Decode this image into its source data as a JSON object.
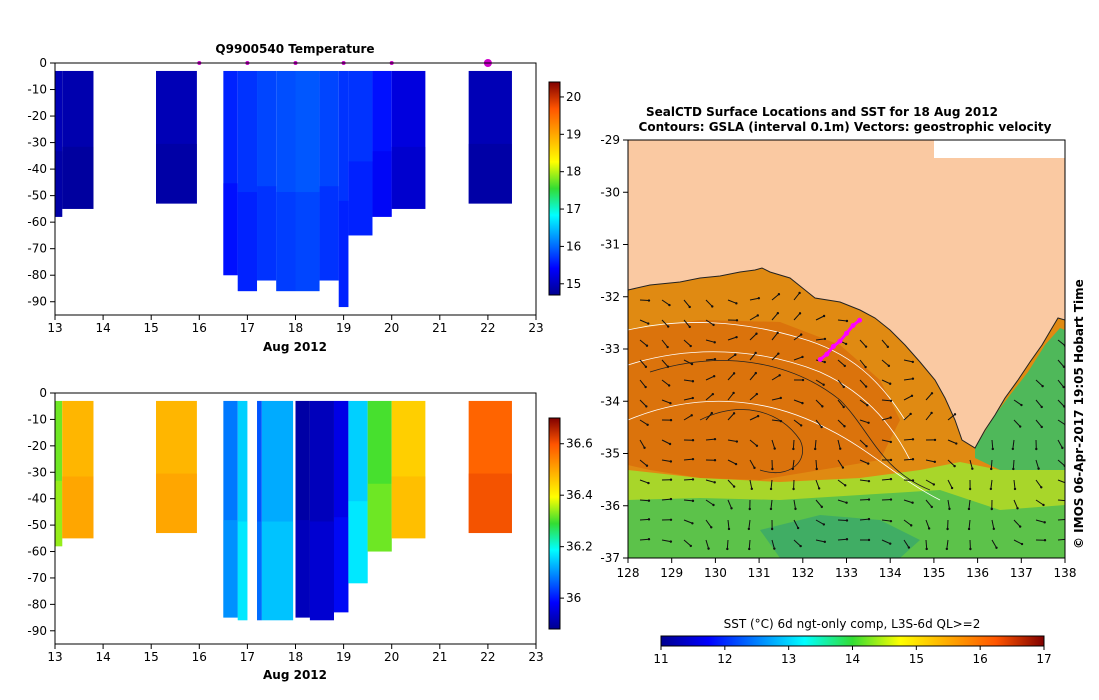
{
  "chart_data": [
    {
      "id": "temperature",
      "type": "heatmap",
      "title": "Q9900540  Temperature",
      "xlabel": "Aug 2012",
      "ylabel": "",
      "xlim": [
        13,
        23
      ],
      "ylim": [
        -95,
        0
      ],
      "x_ticks": [
        13,
        14,
        15,
        16,
        17,
        18,
        19,
        20,
        21,
        22,
        23
      ],
      "y_ticks": [
        0,
        -10,
        -20,
        -30,
        -40,
        -50,
        -60,
        -70,
        -80,
        -90
      ],
      "colorbar": {
        "min": 14.7,
        "max": 20.4,
        "ticks": [
          15,
          16,
          17,
          18,
          19,
          20
        ],
        "colormap": "jet"
      },
      "profile_markers": [
        16,
        17,
        18,
        19,
        20,
        22
      ],
      "highlight_marker": 22,
      "profiles": [
        {
          "x0": 13.0,
          "x1": 13.15,
          "top": -3,
          "bottom": -58,
          "value": 14.95
        },
        {
          "x0": 13.15,
          "x1": 13.8,
          "top": -3,
          "bottom": -55,
          "value": 14.9
        },
        {
          "x0": 15.1,
          "x1": 15.95,
          "top": -3,
          "bottom": -53,
          "value": 14.95
        },
        {
          "x0": 16.5,
          "x1": 16.8,
          "top": -3,
          "bottom": -80,
          "value": 15.6
        },
        {
          "x0": 16.8,
          "x1": 17.2,
          "top": -3,
          "bottom": -86,
          "value": 15.7
        },
        {
          "x0": 17.2,
          "x1": 17.6,
          "top": -3,
          "bottom": -82,
          "value": 15.8
        },
        {
          "x0": 17.6,
          "x1": 18.0,
          "top": -3,
          "bottom": -86,
          "value": 15.85
        },
        {
          "x0": 18.0,
          "x1": 18.5,
          "top": -3,
          "bottom": -86,
          "value": 15.9
        },
        {
          "x0": 18.5,
          "x1": 18.9,
          "top": -3,
          "bottom": -82,
          "value": 15.8
        },
        {
          "x0": 18.9,
          "x1": 19.1,
          "top": -3,
          "bottom": -92,
          "value": 15.7
        },
        {
          "x0": 19.1,
          "x1": 19.6,
          "top": -3,
          "bottom": -65,
          "value": 15.7
        },
        {
          "x0": 19.6,
          "x1": 20.0,
          "top": -3,
          "bottom": -58,
          "value": 15.5
        },
        {
          "x0": 20.0,
          "x1": 20.7,
          "top": -3,
          "bottom": -55,
          "value": 15.2
        },
        {
          "x0": 21.6,
          "x1": 22.5,
          "top": -3,
          "bottom": -53,
          "value": 14.95
        }
      ]
    },
    {
      "id": "salinity",
      "type": "heatmap",
      "title": "",
      "xlabel": "Aug 2012",
      "ylabel": "",
      "xlim": [
        13,
        23
      ],
      "ylim": [
        -95,
        0
      ],
      "x_ticks": [
        13,
        14,
        15,
        16,
        17,
        18,
        19,
        20,
        21,
        22,
        23
      ],
      "y_ticks": [
        0,
        -10,
        -20,
        -30,
        -40,
        -50,
        -60,
        -70,
        -80,
        -90
      ],
      "colorbar": {
        "min": 35.88,
        "max": 36.7,
        "ticks": [
          36.0,
          36.2,
          36.4,
          36.6
        ],
        "tick_labels": [
          "36",
          "36.2",
          "36.4",
          "36.6"
        ],
        "colormap": "jet"
      },
      "profiles": [
        {
          "x0": 13.0,
          "x1": 13.15,
          "top": -3,
          "bottom": -58,
          "value": 36.32
        },
        {
          "x0": 13.15,
          "x1": 13.8,
          "top": -3,
          "bottom": -55,
          "value": 36.48
        },
        {
          "x0": 15.1,
          "x1": 15.95,
          "top": -3,
          "bottom": -53,
          "value": 36.48
        },
        {
          "x0": 16.5,
          "x1": 16.8,
          "top": -3,
          "bottom": -85,
          "value": 36.08
        },
        {
          "x0": 16.8,
          "x1": 17.0,
          "top": -3,
          "bottom": -86,
          "value": 36.15
        },
        {
          "x0": 17.2,
          "x1": 17.3,
          "top": -3,
          "bottom": -86,
          "value": 36.05
        },
        {
          "x0": 17.3,
          "x1": 17.95,
          "top": -3,
          "bottom": -86,
          "value": 36.12
        },
        {
          "x0": 18.0,
          "x1": 18.3,
          "top": -3,
          "bottom": -85,
          "value": 35.9
        },
        {
          "x0": 18.3,
          "x1": 18.8,
          "top": -3,
          "bottom": -86,
          "value": 35.92
        },
        {
          "x0": 18.8,
          "x1": 19.1,
          "top": -3,
          "bottom": -83,
          "value": 35.96
        },
        {
          "x0": 19.1,
          "x1": 19.5,
          "top": -3,
          "bottom": -72,
          "value": 36.15
        },
        {
          "x0": 19.5,
          "x1": 20.0,
          "top": -3,
          "bottom": -60,
          "value": 36.3
        },
        {
          "x0": 20.0,
          "x1": 20.7,
          "top": -3,
          "bottom": -55,
          "value": 36.45
        },
        {
          "x0": 21.6,
          "x1": 22.5,
          "top": -3,
          "bottom": -53,
          "value": 36.58
        }
      ]
    },
    {
      "id": "sst-map",
      "type": "heatmap",
      "title": "SealCTD Surface Locations and SST for 18 Aug 2012",
      "subtitle": "Contours: GSLA (interval 0.1m) Vectors: geostrophic velocity",
      "xlim": [
        128,
        138
      ],
      "ylim": [
        -37,
        -29
      ],
      "x_ticks": [
        128,
        129,
        130,
        131,
        132,
        133,
        134,
        135,
        136,
        137,
        138
      ],
      "y_ticks": [
        -29,
        -30,
        -31,
        -32,
        -33,
        -34,
        -35,
        -36,
        -37
      ],
      "colorbar": {
        "label": "SST (°C) 6d ngt-only comp, L3S-6d QL>=2",
        "min": 11,
        "max": 17,
        "ticks": [
          11,
          12,
          13,
          14,
          15,
          16,
          17
        ],
        "colormap": "jet"
      },
      "seal_track": [
        [
          132.4,
          -33.2
        ],
        [
          132.55,
          -33.1
        ],
        [
          132.7,
          -32.95
        ],
        [
          132.85,
          -32.85
        ],
        [
          133.0,
          -32.7
        ],
        [
          133.15,
          -32.55
        ],
        [
          133.3,
          -32.45
        ]
      ],
      "credit": "© IMOS 06-Apr-2017 19:05 Hobart Time"
    }
  ]
}
